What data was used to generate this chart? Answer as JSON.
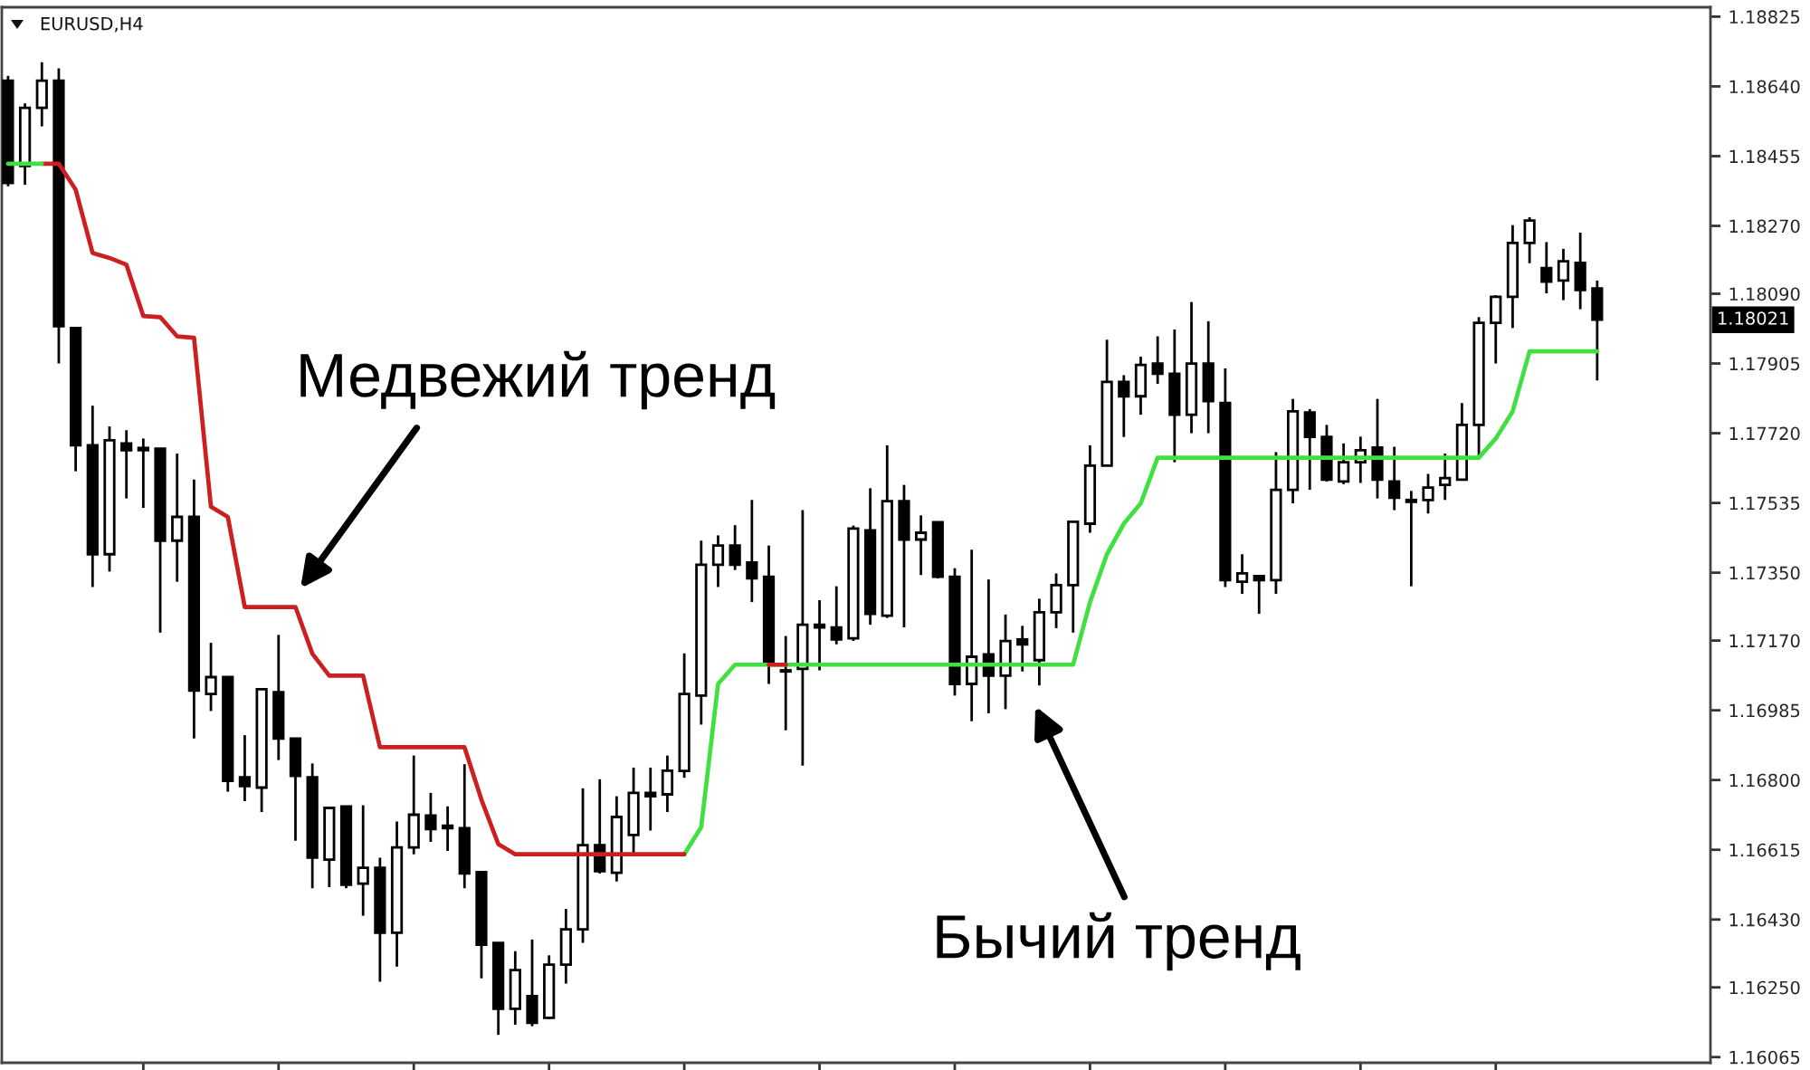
{
  "chart_data": {
    "type": "candlestick",
    "title": "EURUSD,H4",
    "color": "#000000",
    "categories": [
      null,
      null,
      null,
      null,
      null,
      null,
      null,
      null,
      null,
      null,
      null,
      null,
      null,
      null,
      null,
      null,
      null,
      null,
      null,
      null,
      null,
      null,
      null,
      null,
      null,
      null,
      null,
      null,
      null,
      null,
      null,
      null,
      null,
      null,
      null,
      null,
      null,
      null,
      null,
      null,
      null,
      null,
      null,
      null,
      null,
      null,
      null,
      null,
      null,
      null,
      null,
      null,
      null,
      null,
      null,
      null,
      null,
      null,
      null,
      null,
      null,
      null,
      null,
      null,
      null,
      null,
      null,
      null,
      null,
      null,
      null,
      null,
      null,
      null,
      null,
      null,
      null,
      null,
      null,
      null,
      null,
      null,
      null,
      null,
      null,
      null,
      null,
      null,
      null,
      null,
      null,
      null,
      null,
      null,
      null
    ],
    "ohlc": [
      [
        1.18655,
        1.18668,
        1.18375,
        1.18384
      ],
      [
        1.18429,
        1.18595,
        1.18379,
        1.18583
      ],
      [
        1.18583,
        1.18704,
        1.18534,
        1.18655
      ],
      [
        1.18655,
        1.18688,
        1.17905,
        1.18004
      ],
      [
        1.17999,
        1.17999,
        1.17619,
        1.17688
      ],
      [
        1.17688,
        1.17793,
        1.17312,
        1.17399
      ],
      [
        1.17399,
        1.17738,
        1.17353,
        1.17701
      ],
      [
        1.17693,
        1.17728,
        1.17547,
        1.17675
      ],
      [
        1.17681,
        1.17706,
        1.17522,
        1.17675
      ],
      [
        1.17679,
        1.17679,
        1.17191,
        1.17435
      ],
      [
        1.17435,
        1.17666,
        1.17326,
        1.17498
      ],
      [
        1.17498,
        1.17597,
        1.1691,
        1.17037
      ],
      [
        1.17028,
        1.17164,
        1.16983,
        1.17073
      ],
      [
        1.17073,
        1.17073,
        1.16769,
        1.16798
      ],
      [
        1.16807,
        1.16919,
        1.16744,
        1.16784
      ],
      [
        1.1678,
        1.17041,
        1.16715,
        1.17041
      ],
      [
        1.17033,
        1.17185,
        1.16853,
        1.1691
      ],
      [
        1.1691,
        1.1691,
        1.16639,
        1.16811
      ],
      [
        1.16807,
        1.16844,
        1.16513,
        1.16594
      ],
      [
        1.16589,
        1.16726,
        1.16516,
        1.16726
      ],
      [
        1.1673,
        1.1673,
        1.16513,
        1.16522
      ],
      [
        1.16525,
        1.16733,
        1.1644,
        1.16567
      ],
      [
        1.16567,
        1.16594,
        1.16265,
        1.16395
      ],
      [
        1.16395,
        1.1669,
        1.16305,
        1.16621
      ],
      [
        1.16621,
        1.16865,
        1.16603,
        1.16708
      ],
      [
        1.16706,
        1.16766,
        1.16636,
        1.1667
      ],
      [
        1.16679,
        1.1673,
        1.16612,
        1.16672
      ],
      [
        1.16672,
        1.16842,
        1.16513,
        1.16552
      ],
      [
        1.16556,
        1.16556,
        1.16274,
        1.16363
      ],
      [
        1.16368,
        1.16368,
        1.16124,
        1.16193
      ],
      [
        1.16193,
        1.16346,
        1.16151,
        1.16296
      ],
      [
        1.16227,
        1.16377,
        1.16147,
        1.16156
      ],
      [
        1.16169,
        1.16335,
        1.16166,
        1.1631
      ],
      [
        1.1631,
        1.16458,
        1.1626,
        1.16404
      ],
      [
        1.16404,
        1.16778,
        1.16368,
        1.16627
      ],
      [
        1.16627,
        1.16802,
        1.16552,
        1.16558
      ],
      [
        1.16554,
        1.16757,
        1.16531,
        1.16702
      ],
      [
        1.16654,
        1.16833,
        1.16603,
        1.16766
      ],
      [
        1.16766,
        1.16833,
        1.16666,
        1.16757
      ],
      [
        1.16762,
        1.16865,
        1.16715,
        1.16825
      ],
      [
        1.16824,
        1.17136,
        1.16806,
        1.17028
      ],
      [
        1.17024,
        1.17435,
        1.16947,
        1.17371
      ],
      [
        1.17371,
        1.17449,
        1.17312,
        1.17422
      ],
      [
        1.17422,
        1.17476,
        1.17357,
        1.17371
      ],
      [
        1.17377,
        1.17543,
        1.17272,
        1.17335
      ],
      [
        1.17339,
        1.17422,
        1.17055,
        1.17106
      ],
      [
        1.17091,
        1.17182,
        1.16932,
        1.17088
      ],
      [
        1.17095,
        1.17516,
        1.16838,
        1.17212
      ],
      [
        1.17212,
        1.17277,
        1.17091,
        1.17205
      ],
      [
        1.17205,
        1.17314,
        1.1716,
        1.17173
      ],
      [
        1.17176,
        1.17475,
        1.17169,
        1.17467
      ],
      [
        1.17462,
        1.17574,
        1.17212,
        1.17241
      ],
      [
        1.17236,
        1.17688,
        1.1723,
        1.1754
      ],
      [
        1.1754,
        1.17583,
        1.17205,
        1.17438
      ],
      [
        1.17438,
        1.17502,
        1.17344,
        1.17456
      ],
      [
        1.17484,
        1.17484,
        1.17335,
        1.17339
      ],
      [
        1.17339,
        1.17362,
        1.17024,
        1.17055
      ],
      [
        1.17055,
        1.17411,
        1.16956,
        1.17127
      ],
      [
        1.17133,
        1.17332,
        1.16977,
        1.17077
      ],
      [
        1.17077,
        1.17239,
        1.16988,
        1.17169
      ],
      [
        1.17173,
        1.17209,
        1.17088,
        1.1716
      ],
      [
        1.17118,
        1.17281,
        1.17051,
        1.17245
      ],
      [
        1.17245,
        1.17348,
        1.17203,
        1.17317
      ],
      [
        1.17317,
        1.17485,
        1.17191,
        1.17485
      ],
      [
        1.1748,
        1.17688,
        1.17456,
        1.17634
      ],
      [
        1.17634,
        1.17968,
        1.17634,
        1.17856
      ],
      [
        1.17856,
        1.17874,
        1.1771,
        1.17818
      ],
      [
        1.17818,
        1.17923,
        1.17769,
        1.17901
      ],
      [
        1.17905,
        1.17977,
        1.17851,
        1.17878
      ],
      [
        1.17878,
        1.17995,
        1.17643,
        1.17769
      ],
      [
        1.17769,
        1.18068,
        1.1772,
        1.17905
      ],
      [
        1.17905,
        1.18017,
        1.1772,
        1.17805
      ],
      [
        1.178,
        1.17892,
        1.17312,
        1.1733
      ],
      [
        1.17326,
        1.17399,
        1.17294,
        1.17348
      ],
      [
        1.17341,
        1.17341,
        1.17241,
        1.1733
      ],
      [
        1.1733,
        1.1767,
        1.17294,
        1.1757
      ],
      [
        1.1757,
        1.17811,
        1.17534,
        1.17778
      ],
      [
        1.17775,
        1.17784,
        1.1757,
        1.1771
      ],
      [
        1.1771,
        1.17742,
        1.17592,
        1.17597
      ],
      [
        1.17592,
        1.17693,
        1.17585,
        1.17643
      ],
      [
        1.17643,
        1.17711,
        1.17588,
        1.17675
      ],
      [
        1.17682,
        1.17811,
        1.17547,
        1.17597
      ],
      [
        1.17592,
        1.17684,
        1.17516,
        1.17549
      ],
      [
        1.17543,
        1.17567,
        1.17314,
        1.17538
      ],
      [
        1.17543,
        1.17612,
        1.17507,
        1.17576
      ],
      [
        1.17583,
        1.17666,
        1.17543,
        1.17601
      ],
      [
        1.17597,
        1.178,
        1.17594,
        1.17742
      ],
      [
        1.17742,
        1.18028,
        1.17655,
        1.18013
      ],
      [
        1.18013,
        1.18086,
        1.17905,
        1.18082
      ],
      [
        1.18082,
        1.18272,
        1.17999,
        1.18225
      ],
      [
        1.18225,
        1.18293,
        1.18171,
        1.18284
      ],
      [
        1.18158,
        1.18227,
        1.18091,
        1.18122
      ],
      [
        1.18125,
        1.18209,
        1.18073,
        1.18176
      ],
      [
        1.18172,
        1.18252,
        1.18049,
        1.181
      ],
      [
        1.18104,
        1.18125,
        1.1786,
        1.18021
      ]
    ],
    "series": [
      {
        "type": "line",
        "color": "#3fe03f",
        "values": [
          null,
          null,
          null,
          null,
          null,
          null,
          null,
          null,
          null,
          null,
          null,
          null,
          null,
          null,
          null,
          null,
          null,
          null,
          null,
          null,
          null,
          null,
          null,
          null,
          null,
          null,
          null,
          null,
          null,
          null,
          null,
          null,
          null,
          null,
          null,
          null,
          null,
          null,
          null,
          null,
          1.16603,
          1.16675,
          1.17055,
          1.17106,
          1.17106,
          1.17106,
          1.17106,
          1.17106,
          1.17106,
          1.17106,
          1.17106,
          1.17106,
          1.17106,
          1.17106,
          1.17106,
          1.17106,
          1.17106,
          1.17106,
          1.17106,
          1.17106,
          1.17106,
          1.17106,
          1.17106,
          1.17106,
          1.17272,
          1.17399,
          1.1748,
          1.17534,
          1.17655,
          1.17655,
          1.17655,
          1.17655,
          1.17655,
          1.17655,
          1.17655,
          1.17655,
          1.17655,
          1.17655,
          1.17655,
          1.17655,
          1.17655,
          1.17655,
          1.17655,
          1.17655,
          1.17655,
          1.17655,
          1.17655,
          1.17655,
          1.17706,
          1.17778,
          1.17937,
          1.17937,
          1.17937,
          1.17937,
          1.17937
        ]
      },
      {
        "type": "line",
        "color": "#cc2020",
        "values": [
          null,
          null,
          1.18435,
          1.18435,
          1.18366,
          1.18198,
          1.18185,
          1.18167,
          1.18031,
          1.18028,
          1.17977,
          1.17973,
          1.17525,
          1.17498,
          1.17259,
          1.17259,
          1.17259,
          1.17259,
          1.17135,
          1.17077,
          1.17077,
          1.17077,
          1.16887,
          1.16887,
          1.16887,
          1.16887,
          1.16887,
          1.16887,
          1.16748,
          1.1663,
          1.16603,
          1.16603,
          1.16603,
          1.16603,
          1.16603,
          1.16603,
          1.16603,
          1.16603,
          1.16603,
          1.16603,
          1.16603,
          null,
          null,
          null,
          null,
          null,
          null,
          null,
          null,
          null,
          null,
          null,
          null,
          null,
          null,
          null,
          null,
          null,
          null,
          null,
          null,
          null,
          null,
          null,
          null,
          null,
          null,
          null,
          null,
          null,
          null,
          null,
          null,
          null,
          null,
          null,
          null,
          null,
          null,
          null,
          null,
          null,
          null,
          null,
          null,
          null,
          null,
          null,
          null,
          null,
          null,
          null,
          null,
          null,
          null
        ]
      },
      {
        "type": "line",
        "color": "#3fe03f",
        "values": [
          1.18435,
          1.18435,
          1.18435,
          null,
          null,
          null,
          null,
          null,
          null,
          null,
          null,
          null,
          null,
          null,
          null,
          null,
          null,
          null,
          null,
          null,
          null,
          null,
          null,
          null,
          null,
          null,
          null,
          null,
          null,
          null,
          null,
          null,
          null,
          null,
          null,
          null,
          null,
          null,
          null,
          null,
          null,
          null,
          null,
          null,
          null,
          null,
          null,
          null,
          null,
          null,
          null,
          null,
          null,
          null,
          null,
          null,
          null,
          null,
          null,
          null,
          null,
          null,
          null,
          null,
          null,
          null,
          null,
          null,
          null,
          null,
          null,
          null,
          null,
          null,
          null,
          null,
          null,
          null,
          null,
          null,
          null,
          null,
          null,
          null,
          null,
          null,
          null,
          null,
          null,
          null,
          null,
          null,
          null,
          null,
          null
        ]
      },
      {
        "type": "line",
        "color": "#cc2020",
        "values": [
          null,
          null,
          null,
          null,
          null,
          null,
          null,
          null,
          null,
          null,
          null,
          null,
          null,
          null,
          null,
          null,
          null,
          null,
          null,
          null,
          null,
          null,
          null,
          null,
          null,
          null,
          null,
          null,
          null,
          null,
          null,
          null,
          null,
          null,
          null,
          null,
          null,
          null,
          null,
          null,
          null,
          null,
          null,
          null,
          null,
          1.17106,
          1.17106,
          null,
          null,
          null,
          null,
          null,
          null,
          null,
          null,
          null,
          null,
          null,
          null,
          null,
          null,
          null,
          null,
          null,
          null,
          null,
          null,
          null,
          null,
          null,
          null,
          null,
          null,
          null,
          null,
          null,
          null,
          null,
          null,
          null,
          null,
          null,
          null,
          null,
          null,
          null,
          null,
          null,
          null,
          null,
          null,
          null,
          null,
          null,
          null
        ]
      }
    ],
    "ylim": [
      1.1605,
      1.1885
    ],
    "yticks": [
      1.18825,
      {
        "value": 1.1864,
        "label": "1.18640"
      },
      1.18455,
      {
        "value": 1.1827,
        "label": "1.18270"
      },
      {
        "value": 1.1809,
        "label": "1.18090"
      },
      1.17905,
      {
        "value": 1.1772,
        "label": "1.17720"
      },
      1.17535,
      {
        "value": 1.1735,
        "label": "1.17350"
      },
      {
        "value": 1.1717,
        "label": "1.17170"
      },
      1.16985,
      {
        "value": 1.168,
        "label": "1.16800"
      },
      1.16615,
      {
        "value": 1.1643,
        "label": "1.16430"
      },
      {
        "value": 1.1625,
        "label": "1.16250"
      },
      1.16065
    ],
    "tick_labels": "y",
    "annotations": [
      "Медвежий тренд",
      "Бычий тренд",
      "1.18021"
    ]
  }
}
